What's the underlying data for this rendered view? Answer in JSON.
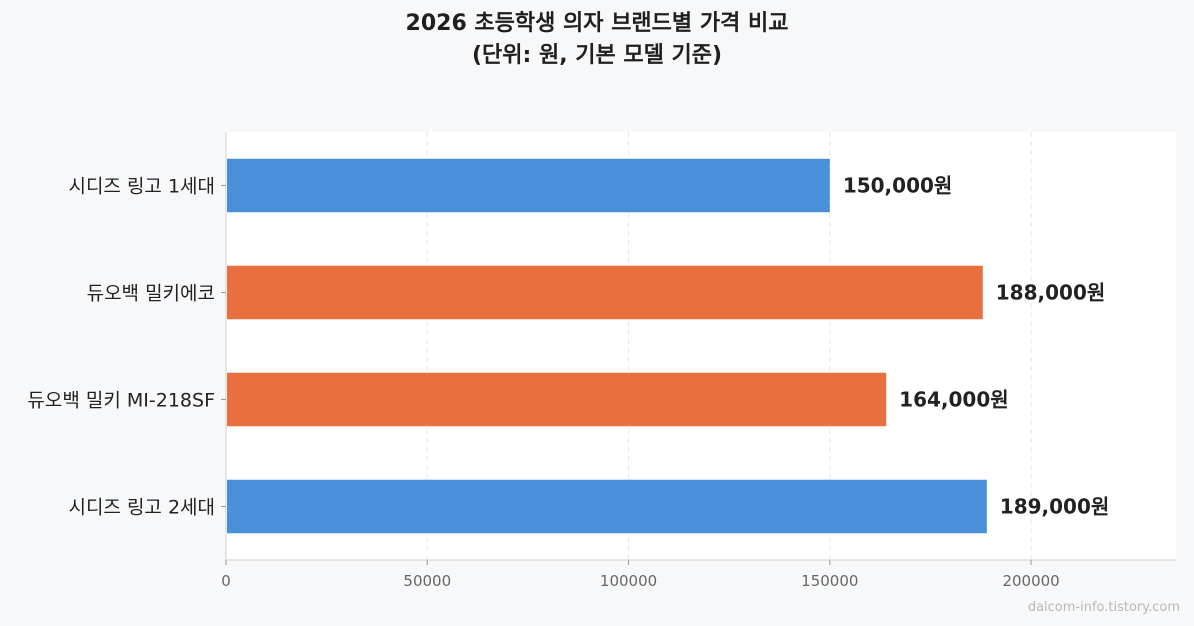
{
  "chart_data": {
    "type": "bar",
    "orientation": "horizontal",
    "title_line1": "2026 초등학생 의자 브랜드별 가격 비교",
    "title_line2": "(단위: 원, 기본 모델 기준)",
    "categories": [
      "시디즈 링고 1세대",
      "듀오백 밀키에코",
      "듀오백 밀키 MI-218SF",
      "시디즈 링고 2세대"
    ],
    "values": [
      150000,
      188000,
      164000,
      189000
    ],
    "value_labels": [
      "150,000원",
      "188,000원",
      "164,000원",
      "189,000원"
    ],
    "bar_colors": [
      "#4a90d9",
      "#e8703f",
      "#e8703f",
      "#4a90d9"
    ],
    "xlim": [
      0,
      236000
    ],
    "xticks": [
      0,
      50000,
      100000,
      150000,
      200000
    ],
    "xtick_labels": [
      "0",
      "50000",
      "100000",
      "150000",
      "200000"
    ],
    "grid": "x-dashed",
    "xlabel": "",
    "ylabel": ""
  },
  "watermark": "dalcom-info.tistory.com"
}
